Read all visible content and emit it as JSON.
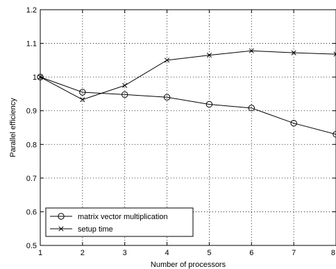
{
  "chart_data": {
    "type": "line",
    "xlabel": "Number of processors",
    "ylabel": "Parallel efficiency",
    "xlim": [
      1,
      8
    ],
    "ylim": [
      0.5,
      1.2
    ],
    "xticks": [
      1,
      2,
      3,
      4,
      5,
      6,
      7,
      8
    ],
    "yticks": [
      0.5,
      0.6,
      0.7,
      0.8,
      0.9,
      1.0,
      1.1,
      1.2
    ],
    "ytick_labels": [
      "0.5",
      "0.6",
      "0.7",
      "0.8",
      "0.9",
      "1",
      "1.1",
      "1.2"
    ],
    "grid": "dotted",
    "legend_position": "bottom-left",
    "series": [
      {
        "name": "matrix vector multiplication",
        "marker": "circle",
        "color": "#000000",
        "x": [
          1,
          2,
          3,
          4,
          5,
          6,
          7,
          8
        ],
        "y": [
          1.0,
          0.955,
          0.948,
          0.94,
          0.919,
          0.908,
          0.863,
          0.83
        ]
      },
      {
        "name": "setup time",
        "marker": "x",
        "color": "#000000",
        "x": [
          1,
          2,
          3,
          4,
          5,
          6,
          7,
          8
        ],
        "y": [
          1.0,
          0.933,
          0.975,
          1.05,
          1.065,
          1.078,
          1.072,
          1.068
        ]
      }
    ]
  }
}
